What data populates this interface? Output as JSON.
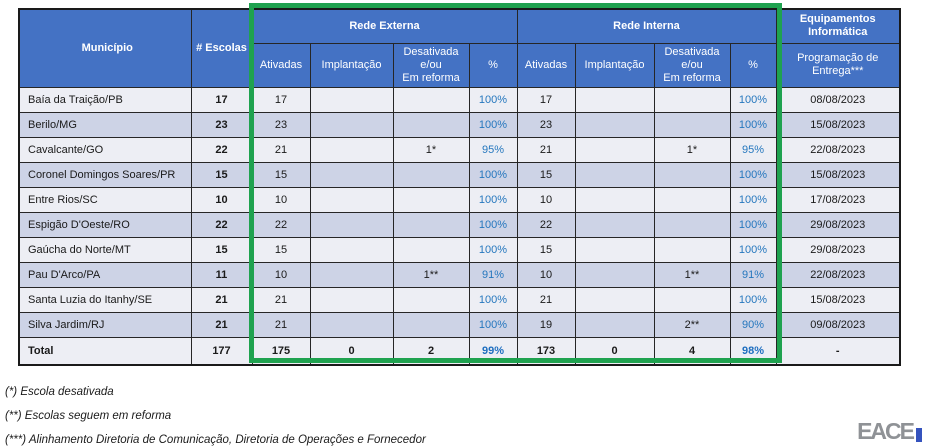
{
  "table": {
    "header": {
      "municipio": "Município",
      "escolas": "# Escolas",
      "rede_externa": "Rede Externa",
      "rede_interna": "Rede Interna",
      "equipamentos": "Equipamentos Informática",
      "sub": {
        "ativadas": "Ativadas",
        "implantacao": "Implantação",
        "desativada": "Desativada\ne/ou\nEm reforma",
        "pct": "%"
      },
      "programacao": "Programação de Entrega***"
    },
    "rows": [
      [
        "Baía da Traição/PB",
        "17",
        "17",
        "",
        "",
        "100%",
        "17",
        "",
        "",
        "100%",
        "08/08/2023"
      ],
      [
        "Berilo/MG",
        "23",
        "23",
        "",
        "",
        "100%",
        "23",
        "",
        "",
        "100%",
        "15/08/2023"
      ],
      [
        "Cavalcante/GO",
        "22",
        "21",
        "",
        "1*",
        "95%",
        "21",
        "",
        "1*",
        "95%",
        "22/08/2023"
      ],
      [
        "Coronel Domingos Soares/PR",
        "15",
        "15",
        "",
        "",
        "100%",
        "15",
        "",
        "",
        "100%",
        "15/08/2023"
      ],
      [
        "Entre Rios/SC",
        "10",
        "10",
        "",
        "",
        "100%",
        "10",
        "",
        "",
        "100%",
        "17/08/2023"
      ],
      [
        "Espigão D'Oeste/RO",
        "22",
        "22",
        "",
        "",
        "100%",
        "22",
        "",
        "",
        "100%",
        "29/08/2023"
      ],
      [
        "Gaúcha do Norte/MT",
        "15",
        "15",
        "",
        "",
        "100%",
        "15",
        "",
        "",
        "100%",
        "29/08/2023"
      ],
      [
        "Pau D'Arco/PA",
        "11",
        "10",
        "",
        "1**",
        "91%",
        "10",
        "",
        "1**",
        "91%",
        "22/08/2023"
      ],
      [
        "Santa Luzia do Itanhy/SE",
        "21",
        "21",
        "",
        "",
        "100%",
        "21",
        "",
        "",
        "100%",
        "15/08/2023"
      ],
      [
        "Silva Jardim/RJ",
        "21",
        "21",
        "",
        "",
        "100%",
        "19",
        "",
        "2**",
        "90%",
        "09/08/2023"
      ]
    ],
    "total_row": [
      "Total",
      "177",
      "175",
      "0",
      "2",
      "99%",
      "173",
      "0",
      "4",
      "98%",
      "-"
    ]
  },
  "footnotes": [
    "(*) Escola desativada",
    "(**) Escolas seguem em reforma",
    "(***) Alinhamento Diretoria de Comunicação, Diretoria de Operações e Fornecedor"
  ],
  "logo": {
    "text": "EACE"
  },
  "colors": {
    "header_blue": "#4472C4",
    "row_light": "#EDEEF4",
    "row_dark": "#CDD3E6",
    "pct_blue": "#2577BE",
    "highlight_green": "#1FA24F",
    "logo_gray": "#8F9296",
    "logo_bar_blue": "#3553BE"
  }
}
